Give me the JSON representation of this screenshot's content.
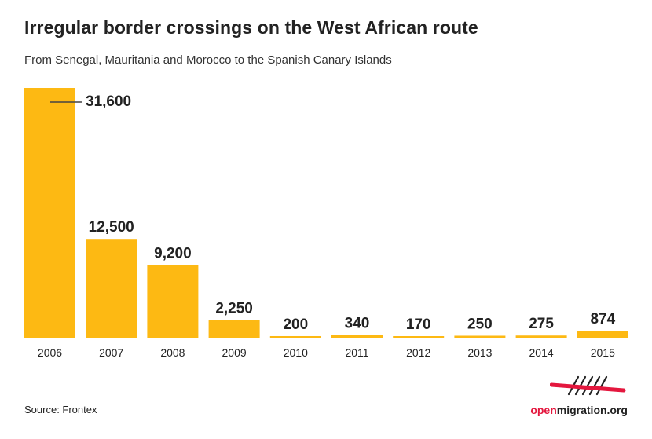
{
  "title": "Irregular border crossings on the West African route",
  "subtitle": "From Senegal, Mauritania and Morocco to the Spanish Canary Islands",
  "source": "Source: Frontex",
  "logo": {
    "part1": "open",
    "part2": "migration.org"
  },
  "colors": {
    "bar": "#fdb913",
    "text": "#222222",
    "accent": "#e4173e",
    "baseline": "#555555"
  },
  "chart_data": {
    "type": "bar",
    "categories": [
      "2006",
      "2007",
      "2008",
      "2009",
      "2010",
      "2011",
      "2012",
      "2013",
      "2014",
      "2015"
    ],
    "values": [
      31600,
      12500,
      9200,
      2250,
      200,
      340,
      170,
      250,
      275,
      874
    ],
    "labels": [
      "31,600",
      "12,500",
      "9,200",
      "2,250",
      "200",
      "340",
      "170",
      "250",
      "275",
      "874"
    ],
    "title": "Irregular border crossings on the West African route",
    "subtitle": "From Senegal, Mauritania and Morocco to the Spanish Canary Islands",
    "xlabel": "",
    "ylabel": "",
    "ylim": [
      0,
      31600
    ],
    "grid": false,
    "legend": "none"
  }
}
